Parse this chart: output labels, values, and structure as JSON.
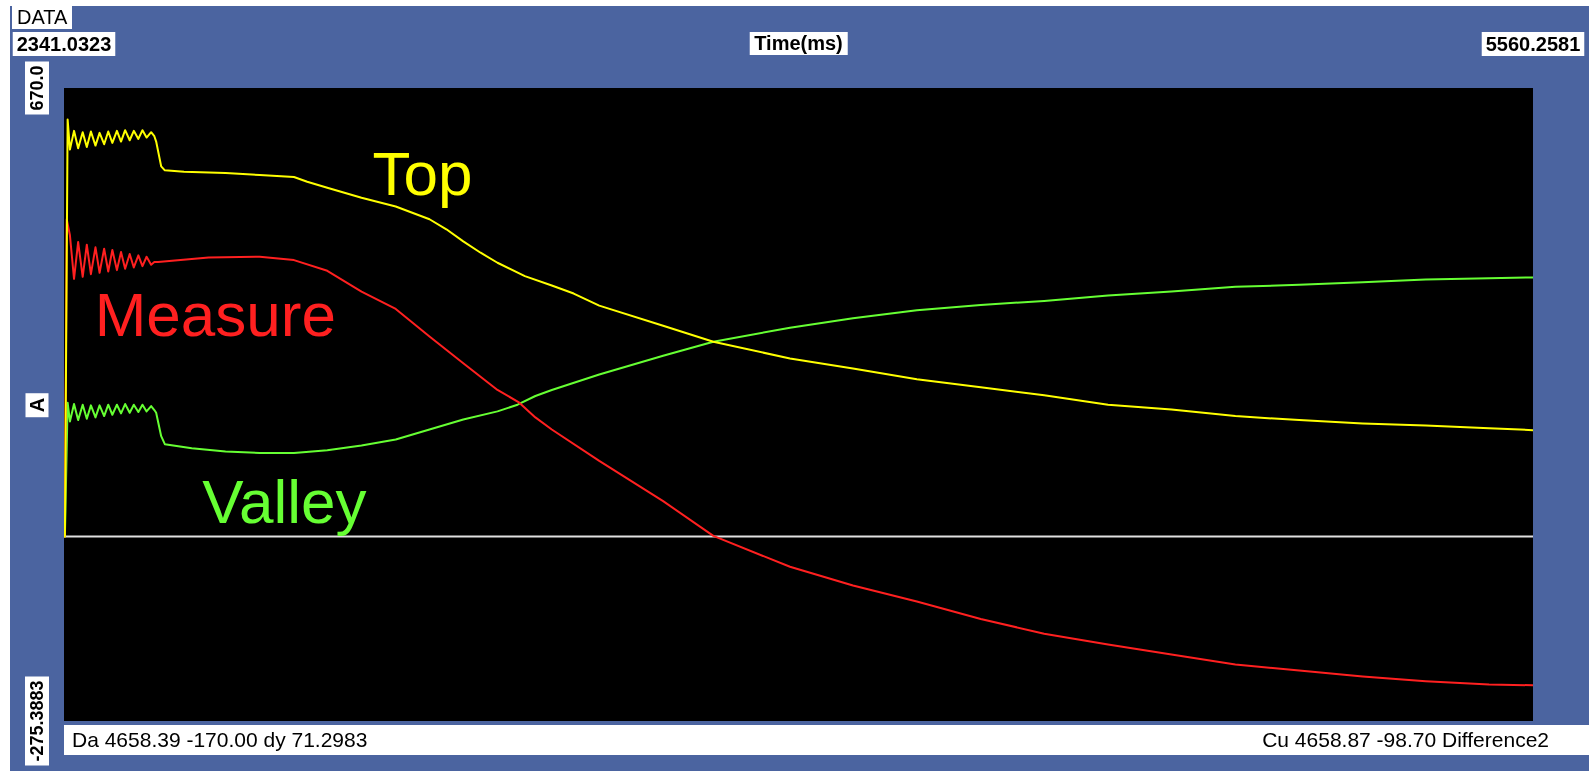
{
  "chart_data": {
    "type": "line",
    "title": "DATA",
    "xlabel": "Time(ms)",
    "ylabel": "A",
    "xlim": [
      2341.0323,
      5560.2581
    ],
    "xticks": [
      2341.0323,
      5560.2581
    ],
    "ylim": [
      -275.3883,
      670
    ],
    "yticks": [
      -275.3883,
      {
        "value": 670,
        "label": "670.0"
      }
    ],
    "ref_lines": [
      {
        "axis": "y",
        "value": 0,
        "color": "#e0e0e0"
      }
    ],
    "annotations": [
      "Da 4658.39 -170.00 dy 71.2983",
      "Cu 4658.87 -98.70 Difference2"
    ],
    "marker": "none",
    "line_style": "solid",
    "series": [
      {
        "name": "Top",
        "color": "#ffff00",
        "x": [
          2343,
          2349,
          2354,
          2363,
          2372,
          2382,
          2391,
          2400,
          2410,
          2419,
          2429,
          2438,
          2447,
          2457,
          2466,
          2475,
          2485,
          2494,
          2504,
          2513,
          2522,
          2532,
          2539,
          2543,
          2554,
          2562,
          2604,
          2695,
          2770,
          2845,
          2874,
          2918,
          2993,
          3068,
          3142,
          3179,
          3216,
          3254,
          3291,
          3351,
          3410,
          3458,
          3514,
          3654,
          3764,
          3932,
          4070,
          4210,
          4350,
          4489,
          4629,
          4768,
          4908,
          5048,
          5187,
          5325,
          5464,
          5560
        ],
        "values": [
          0,
          623,
          578,
          606,
          580,
          604,
          582,
          605,
          584,
          603,
          586,
          605,
          588,
          606,
          590,
          607,
          592,
          606,
          594,
          607,
          596,
          604,
          598,
          590,
          553,
          547,
          545,
          543,
          540,
          537,
          530,
          521,
          506,
          493,
          474,
          459,
          441,
          424,
          409,
          389,
          375,
          363,
          345,
          315,
          291,
          266,
          251,
          235,
          223,
          211,
          197,
          190,
          180,
          174,
          169,
          166,
          162,
          159
        ]
      },
      {
        "name": "Measure",
        "color": "#ff2020",
        "x": [
          2343,
          2347,
          2354,
          2363,
          2372,
          2382,
          2391,
          2400,
          2410,
          2419,
          2429,
          2438,
          2447,
          2457,
          2466,
          2475,
          2485,
          2494,
          2504,
          2513,
          2522,
          2532,
          2539,
          2547,
          2658,
          2770,
          2845,
          2918,
          2993,
          3068,
          3142,
          3216,
          3291,
          3337,
          3374,
          3410,
          3514,
          3654,
          3764,
          3932,
          4070,
          4210,
          4350,
          4489,
          4629,
          4768,
          4908,
          5048,
          5187,
          5325,
          5464,
          5560
        ],
        "values": [
          0,
          474,
          450,
          385,
          440,
          388,
          436,
          392,
          432,
          394,
          430,
          396,
          428,
          398,
          425,
          400,
          422,
          402,
          420,
          404,
          418,
          406,
          410,
          410,
          417,
          418,
          413,
          397,
          366,
          340,
          299,
          259,
          219,
          201,
          178,
          160,
          113,
          53,
          1,
          -45,
          -73,
          -97,
          -123,
          -145,
          -161,
          -176,
          -191,
          -200,
          -209,
          -216,
          -221,
          -222
        ]
      },
      {
        "name": "Valley",
        "color": "#66ff33",
        "x": [
          2343,
          2349,
          2354,
          2363,
          2372,
          2382,
          2391,
          2400,
          2410,
          2419,
          2429,
          2438,
          2447,
          2457,
          2466,
          2475,
          2485,
          2494,
          2504,
          2513,
          2522,
          2532,
          2539,
          2543,
          2554,
          2562,
          2621,
          2695,
          2770,
          2845,
          2918,
          2993,
          3068,
          3142,
          3216,
          3291,
          3335,
          3374,
          3410,
          3514,
          3654,
          3764,
          3932,
          4070,
          4210,
          4350,
          4489,
          4629,
          4768,
          4908,
          5048,
          5187,
          5325,
          5464,
          5560
        ],
        "values": [
          0,
          200,
          172,
          198,
          174,
          197,
          176,
          196,
          178,
          196,
          180,
          197,
          182,
          197,
          184,
          198,
          185,
          197,
          186,
          197,
          187,
          195,
          189,
          185,
          150,
          138,
          132,
          127,
          125,
          125,
          129,
          136,
          145,
          160,
          175,
          187,
          197,
          210,
          219,
          242,
          270,
          291,
          312,
          326,
          338,
          346,
          352,
          360,
          366,
          373,
          376,
          380,
          384,
          386,
          387
        ]
      }
    ]
  }
}
